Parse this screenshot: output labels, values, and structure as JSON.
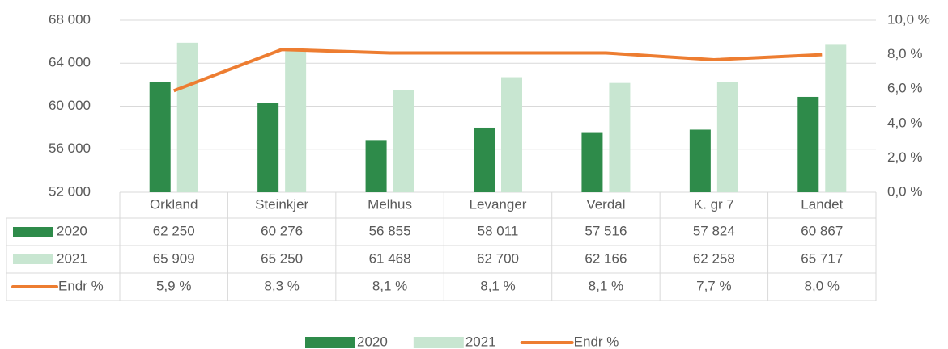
{
  "chart_data": {
    "type": "bar",
    "categories": [
      "Orkland",
      "Steinkjer",
      "Melhus",
      "Levanger",
      "Verdal",
      "K. gr 7",
      "Landet"
    ],
    "series": [
      {
        "name": "2020",
        "type": "bar",
        "color": "#2e8b4a",
        "values": [
          62250,
          60276,
          56855,
          58011,
          57516,
          57824,
          60867
        ],
        "value_labels": [
          "62 250",
          "60 276",
          "56 855",
          "58 011",
          "57 516",
          "57 824",
          "60 867"
        ]
      },
      {
        "name": "2021",
        "type": "bar",
        "color": "#c8e6d1",
        "values": [
          65909,
          65250,
          61468,
          62700,
          62166,
          62258,
          65717
        ],
        "value_labels": [
          "65 909",
          "65 250",
          "61 468",
          "62 700",
          "62 166",
          "62 258",
          "65 717"
        ]
      },
      {
        "name": "Endr %",
        "type": "line",
        "axis": "y2",
        "color": "#ed7d31",
        "values": [
          5.9,
          8.3,
          8.1,
          8.1,
          8.1,
          7.7,
          8.0
        ],
        "value_labels": [
          "5,9 %",
          "8,3 %",
          "8,1 %",
          "8,1 %",
          "8,1 %",
          "7,7 %",
          "8,0 %"
        ]
      }
    ],
    "ylim": [
      52000,
      68000
    ],
    "yticks": [
      {
        "value": 52000,
        "label": "52 000"
      },
      {
        "value": 56000,
        "label": "56 000"
      },
      {
        "value": 60000,
        "label": "60 000"
      },
      {
        "value": 64000,
        "label": "64 000"
      },
      {
        "value": 68000,
        "label": "68 000"
      }
    ],
    "y2lim": [
      0,
      10
    ],
    "y2ticks": [
      {
        "value": 0,
        "label": "0,0 %"
      },
      {
        "value": 2,
        "label": "2,0 %"
      },
      {
        "value": 4,
        "label": "4,0 %"
      },
      {
        "value": 6,
        "label": "6,0 %"
      },
      {
        "value": 8,
        "label": "8,0 %"
      },
      {
        "value": 10,
        "label": "10,0 %"
      }
    ],
    "grid": true,
    "legend": "bottom",
    "data_table": true
  }
}
